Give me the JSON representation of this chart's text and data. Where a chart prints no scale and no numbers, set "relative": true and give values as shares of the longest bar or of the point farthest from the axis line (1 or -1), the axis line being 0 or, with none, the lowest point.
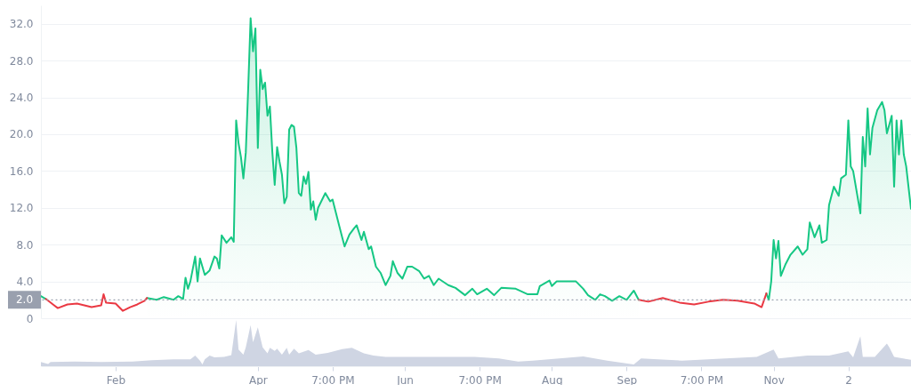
{
  "chart_data": [
    {
      "type": "area",
      "x": [
        "--01-01",
        "--01-03",
        "--01-04",
        "--01-06",
        "--01-08",
        "--01-12",
        "--01-16",
        "--01-19",
        "--01-22",
        "--01-26",
        "--01-27",
        "--01-28",
        "--02-01",
        "--02-04",
        "--02-07",
        "--02-10",
        "--02-13",
        "--02-14",
        "--02-18",
        "--02-21",
        "--02-25",
        "--02-27",
        "--03-01",
        "--03-02",
        "--03-03",
        "--03-04",
        "--03-06",
        "--03-07",
        "--03-08",
        "--03-10",
        "--03-12",
        "--03-14",
        "--03-15",
        "--03-16",
        "--03-17",
        "--03-19",
        "--03-21",
        "--03-22",
        "--03-23",
        "--03-24",
        "--03-25",
        "--03-26",
        "--03-27",
        "--03-28",
        "--03-29",
        "--03-30",
        "--03-31",
        "--04-01",
        "--04-02",
        "--04-03",
        "--04-04",
        "--04-05",
        "--04-06",
        "--04-07",
        "--04-08",
        "--04-09",
        "--04-10",
        "--04-11",
        "--04-12",
        "--04-13",
        "--04-14",
        "--04-15",
        "--04-16",
        "--04-17",
        "--04-18",
        "--04-19",
        "--04-20",
        "--04-21",
        "--04-22",
        "--04-23",
        "--04-24",
        "--04-25",
        "--04-26",
        "--04-29",
        "--05-01",
        "--05-02",
        "--05-05",
        "--05-06",
        "--05-07",
        "--05-09",
        "--05-11",
        "--05-12",
        "--05-14",
        "--05-15",
        "--05-17",
        "--05-18",
        "--05-20",
        "--05-22",
        "--05-24",
        "--05-26",
        "--05-27",
        "--05-29",
        "--05-31",
        "--06-02",
        "--06-04",
        "--06-07",
        "--06-09",
        "--06-11",
        "--06-13",
        "--06-15",
        "--06-19",
        "--06-22",
        "--06-26",
        "--06-29",
        "--07-01",
        "--07-05",
        "--07-08",
        "--07-11",
        "--07-17",
        "--07-22",
        "--07-26",
        "--07-27",
        "--07-31",
        "--08-01",
        "--08-03",
        "--08-06",
        "--08-11",
        "--08-14",
        "--08-16",
        "--08-19",
        "--08-21",
        "--08-23",
        "--08-26",
        "--08-29",
        "--09-01",
        "--09-04",
        "--09-06",
        "--09-10",
        "--09-16",
        "--09-23",
        "--09-29",
        "--10-05",
        "--10-11",
        "--10-17",
        "--10-24",
        "--10-27",
        "--10-29",
        "--10-30",
        "--10-31",
        "--11-01",
        "--11-02",
        "--11-03",
        "--11-04",
        "--11-06",
        "--11-08",
        "--11-11",
        "--11-13",
        "--11-15",
        "--11-16",
        "--11-18",
        "--11-20",
        "--11-21",
        "--11-23",
        "--11-24",
        "--11-26",
        "--11-28",
        "--11-29",
        "--12-01",
        "--12-02",
        "--12-03",
        "--12-04",
        "--12-07",
        "--12-08",
        "--12-09",
        "--12-10",
        "--12-11",
        "--12-12",
        "--12-14",
        "--12-16",
        "--12-17",
        "--12-18",
        "--12-20",
        "--12-21",
        "--12-22",
        "--12-23",
        "--12-24",
        "--12-25",
        "--12-26",
        "--12-28"
      ],
      "series": [
        {
          "color": "#16c784",
          "values": [
            2.4,
            2.1,
            null,
            null,
            null,
            null,
            null,
            null,
            null,
            null,
            null,
            null,
            null,
            null,
            null,
            null,
            null,
            2.2,
            2.0,
            2.3,
            2.0,
            2.4,
            2.1,
            4.4,
            3.2,
            4.0,
            6.7,
            4.0,
            6.5,
            4.7,
            5.2,
            6.7,
            6.5,
            5.4,
            9.0,
            8.2,
            8.8,
            8.3,
            21.5,
            19.0,
            17.5,
            15.2,
            18.0,
            25.0,
            32.6,
            29.0,
            31.5,
            18.5,
            27.0,
            24.9,
            25.6,
            22.0,
            23.0,
            18.1,
            14.5,
            18.6,
            17.0,
            15.6,
            12.5,
            13.2,
            20.5,
            21.0,
            20.8,
            18.5,
            13.6,
            13.3,
            15.4,
            14.6,
            15.9,
            11.8,
            12.7,
            10.7,
            12.0,
            13.6,
            12.7,
            12.9,
            9.8,
            8.8,
            7.8,
            9.1,
            9.8,
            10.1,
            8.5,
            9.4,
            7.5,
            7.8,
            5.6,
            4.9,
            3.6,
            4.6,
            6.2,
            4.9,
            4.3,
            5.6,
            5.6,
            5.1,
            4.3,
            4.6,
            3.6,
            4.3,
            3.6,
            3.3,
            2.5,
            3.2,
            2.6,
            3.2,
            2.5,
            3.3,
            3.2,
            2.6,
            2.6,
            3.5,
            4.1,
            3.5,
            4.0,
            4.0,
            4.0,
            3.2,
            2.5,
            2.0,
            2.6,
            2.4,
            1.9,
            2.4,
            2.0,
            3.0,
            2.0,
            null,
            null,
            null,
            null,
            null,
            null,
            null,
            null,
            null,
            2.7,
            2.0,
            4.0,
            8.5,
            6.5,
            8.4,
            4.6,
            5.9,
            6.9,
            7.8,
            6.9,
            7.5,
            10.4,
            8.8,
            10.1,
            8.2,
            8.5,
            12.3,
            14.3,
            13.3,
            15.2,
            15.6,
            21.5,
            16.5,
            16.0,
            11.4,
            19.7,
            16.5,
            22.8,
            17.8,
            20.7,
            22.6,
            23.5,
            22.6,
            20.1,
            22.0,
            14.3,
            21.5,
            17.8,
            21.5,
            17.8,
            16.5,
            11.9
          ]
        },
        {
          "type": "line",
          "color": "#ea3943",
          "x": [
            "--01-03",
            "--01-04",
            "--01-06",
            "--01-08",
            "--01-12",
            "--01-16",
            "--01-19",
            "--01-22",
            "--01-26",
            "--01-27",
            "--01-28",
            "--02-01",
            "--02-04",
            "--02-07",
            "--02-10",
            "--02-13",
            "--02-14",
            "--06-01",
            "--09-06",
            "--09-10",
            "--09-16",
            "--09-23",
            "--09-29",
            "--10-05",
            "--10-11",
            "--10-17",
            "--10-24",
            "--10-27",
            "--10-29"
          ],
          "values": [
            2.1,
            1.9,
            1.5,
            1.1,
            1.5,
            1.6,
            1.4,
            1.2,
            1.4,
            2.6,
            1.7,
            1.6,
            0.8,
            1.2,
            1.5,
            1.9,
            2.2,
            null,
            2.0,
            1.8,
            2.2,
            1.7,
            1.5,
            1.8,
            2.0,
            1.9,
            1.6,
            1.2,
            2.7
          ]
        }
      ],
      "xlim": [
        "--01-01",
        "--12-28"
      ],
      "ylim": [
        0,
        34
      ],
      "yticks": [
        0,
        {
          "value": 4,
          "label": "4.0"
        },
        {
          "value": 8,
          "label": "8.0"
        },
        {
          "value": 12,
          "label": "12.0"
        },
        {
          "value": 16,
          "label": "16.0"
        },
        {
          "value": 20,
          "label": "20.0"
        },
        {
          "value": 24,
          "label": "24.0"
        },
        {
          "value": 28,
          "label": "28.0"
        },
        {
          "value": 32,
          "label": "32.0"
        }
      ],
      "grid": "y",
      "tick_labels": "y",
      "ref_lines": [
        {
          "axis": "y",
          "value": 2,
          "label": "2.0",
          "color": "#99a0ae",
          "line_style": "dotted"
        }
      ]
    },
    {
      "type": "area",
      "relative": true,
      "color": "#cfd5e3",
      "x": [
        "--01-01",
        "--01-04",
        "--01-05",
        "--01-15",
        "--01-26",
        "--02-08",
        "--02-16",
        "--02-25",
        "--03-04",
        "--03-06",
        "--03-08",
        "--03-09",
        "--03-10",
        "--03-12",
        "--03-14",
        "--03-18",
        "--03-21",
        "--03-23",
        "--03-24",
        "--03-26",
        "--03-27",
        "--03-29",
        "--03-30",
        "--04-01",
        "--04-03",
        "--04-05",
        "--04-06",
        "--04-08",
        "--04-09",
        "--04-11",
        "--04-13",
        "--04-14",
        "--04-16",
        "--04-18",
        "--04-22",
        "--04-25",
        "--04-30",
        "--05-06",
        "--05-10",
        "--05-15",
        "--05-19",
        "--05-24",
        "--06-10",
        "--06-18",
        "--06-30",
        "--07-10",
        "--07-18",
        "--07-24",
        "--08-14",
        "--08-24",
        "--09-04",
        "--09-07",
        "--09-24",
        "--10-12",
        "--10-25",
        "--11-01",
        "--11-03",
        "--11-15",
        "--11-24",
        "--12-02",
        "--12-04",
        "--12-07",
        "--12-08",
        "--12-13",
        "--12-18",
        "--12-19",
        "--12-21",
        "--12-28"
      ],
      "values": [
        0.09,
        0.05,
        0.09,
        0.1,
        0.09,
        0.1,
        0.13,
        0.15,
        0.15,
        0.23,
        0.12,
        0.04,
        0.15,
        0.23,
        0.19,
        0.2,
        0.24,
        1,
        0.36,
        0.25,
        0.41,
        0.89,
        0.52,
        0.84,
        0.41,
        0.28,
        0.4,
        0.33,
        0.38,
        0.25,
        0.4,
        0.25,
        0.38,
        0.28,
        0.35,
        0.25,
        0.29,
        0.37,
        0.4,
        0.28,
        0.23,
        0.2,
        0.2,
        0.2,
        0.2,
        0.17,
        0.1,
        0.12,
        0.21,
        0.12,
        0.04,
        0.17,
        0.12,
        0.17,
        0.2,
        0.36,
        0.17,
        0.23,
        0.23,
        0.32,
        0.19,
        0.65,
        0.2,
        0.2,
        0.49,
        0.41,
        0.2,
        0.14
      ],
      "xlim": [
        "--01-01",
        "--12-28"
      ],
      "xticks": [
        {
          "value": "--02-01",
          "label": "Feb"
        },
        {
          "value": "--04-01",
          "label": "Apr"
        },
        {
          "value": "--05-02",
          "label": "7:00 PM"
        },
        {
          "value": "--06-01",
          "label": "Jun"
        },
        {
          "value": "--07-02",
          "label": "7:00 PM"
        },
        {
          "value": "--08-01",
          "label": "Aug"
        },
        {
          "value": "--09-01",
          "label": "Sep"
        },
        {
          "value": "--10-02",
          "label": "7:00 PM"
        },
        {
          "value": "--11-01",
          "label": "Nov"
        },
        {
          "value": "--12-02",
          "label": "2"
        }
      ],
      "tick_labels": "x"
    }
  ]
}
